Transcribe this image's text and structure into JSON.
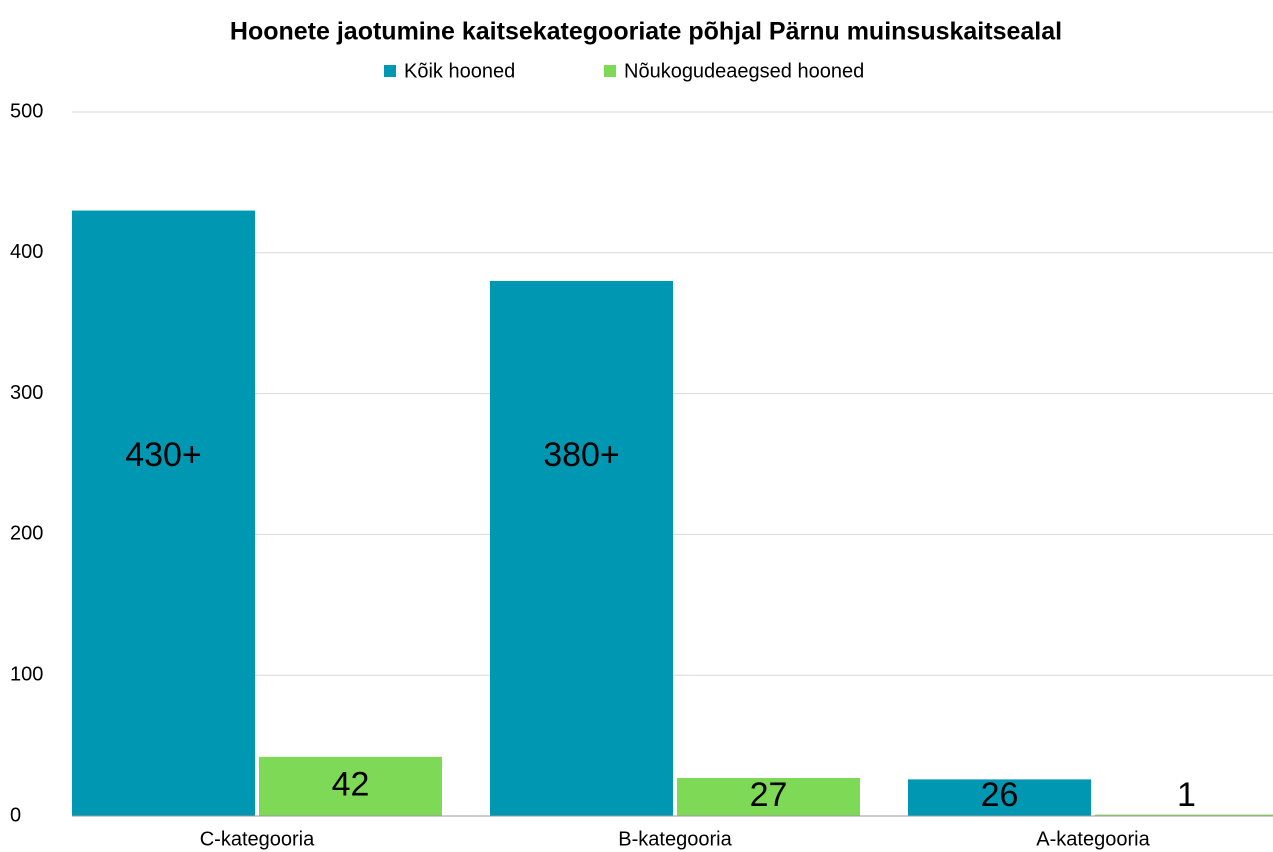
{
  "chart_data": {
    "type": "bar",
    "title": "Hoonete jaotumine kaitsekategooriate põhjal Pärnu muinsuskaitsealal",
    "categories": [
      "C-kategooria",
      "B-kategooria",
      "A-kategooria"
    ],
    "series": [
      {
        "name": "Kõik hooned",
        "color": "#0097b2",
        "values": [
          430,
          380,
          26
        ],
        "value_labels": [
          "430+",
          "380+",
          "26"
        ]
      },
      {
        "name": "Nõukogudeaegsed hooned",
        "color": "#7ed957",
        "values": [
          42,
          27,
          1
        ],
        "value_labels": [
          "42",
          "27",
          "1"
        ]
      }
    ],
    "ylim": [
      0,
      500
    ],
    "yticks": [
      0,
      100,
      200,
      300,
      400,
      500
    ],
    "grid": true,
    "legend": "top"
  }
}
